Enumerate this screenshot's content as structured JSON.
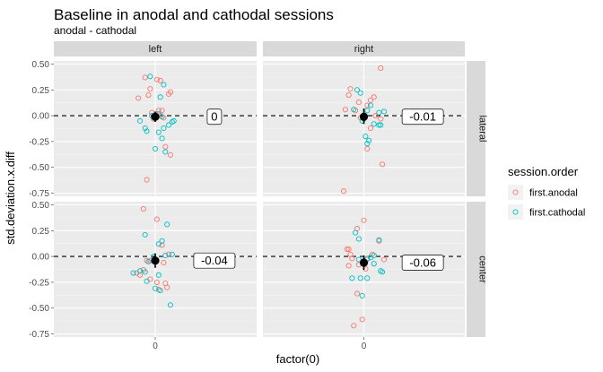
{
  "chart_data": {
    "type": "scatter",
    "title": "Baseline in anodal and cathodal sessions",
    "subtitle": "anodal - cathodal",
    "xlabel": "factor(0)",
    "ylabel": "std.deviation.x.diff",
    "x_tick_labels": [
      "0"
    ],
    "y_tick_labels": [
      "0.50",
      "0.25",
      "0.00",
      "-0.25",
      "-0.50",
      "-0.75"
    ],
    "y_ticks": [
      0.5,
      0.25,
      0,
      -0.25,
      -0.5,
      -0.75
    ],
    "ylim": [
      -0.78,
      0.53
    ],
    "xlim": [
      -0.6,
      0.6
    ],
    "reference_line_y": 0,
    "legend": {
      "title": "session.order",
      "entries": [
        {
          "label": "first.anodal",
          "color": "#F8766D"
        },
        {
          "label": "first.cathodal",
          "color": "#00BFC4"
        }
      ]
    },
    "panels": [
      {
        "col": "left",
        "row": "lateral",
        "label": "0",
        "label_x": 0.35,
        "mean": {
          "x": 0.0,
          "y": -0.01,
          "ymin": -0.06,
          "ymax": 0.04
        },
        "points": {
          "first.anodal": [
            [
              -0.1,
              0.17
            ],
            [
              -0.06,
              0.37
            ],
            [
              0.01,
              0.35
            ],
            [
              0.03,
              0.34
            ],
            [
              -0.03,
              0.26
            ],
            [
              0.08,
              0.21
            ],
            [
              0.09,
              0.23
            ],
            [
              -0.04,
              0.2
            ],
            [
              0.02,
              0.05
            ],
            [
              0.04,
              0.05
            ],
            [
              -0.02,
              0.03
            ],
            [
              0.03,
              0.0
            ],
            [
              0.06,
              -0.3
            ],
            [
              0.09,
              -0.38
            ],
            [
              -0.05,
              -0.62
            ],
            [
              0.05,
              -0.02
            ],
            [
              -0.01,
              -0.03
            ]
          ],
          "first.cathodal": [
            [
              -0.03,
              0.38
            ],
            [
              0.05,
              0.3
            ],
            [
              0.03,
              0.18
            ],
            [
              0.04,
              -0.01
            ],
            [
              -0.01,
              -0.01
            ],
            [
              0.11,
              -0.05
            ],
            [
              0.1,
              -0.06
            ],
            [
              0.08,
              -0.09
            ],
            [
              0.05,
              -0.12
            ],
            [
              -0.06,
              -0.12
            ],
            [
              -0.05,
              -0.15
            ],
            [
              -0.09,
              -0.05
            ],
            [
              0.02,
              -0.16
            ],
            [
              0.04,
              -0.22
            ],
            [
              0.0,
              -0.32
            ],
            [
              0.06,
              -0.35
            ],
            [
              -0.02,
              0.0
            ],
            [
              0.02,
              0.02
            ]
          ]
        }
      },
      {
        "col": "right",
        "row": "lateral",
        "label": "-0.01",
        "label_x": 0.35,
        "mean": {
          "x": 0.0,
          "y": -0.01,
          "ymin": -0.08,
          "ymax": 0.07
        },
        "points": {
          "first.anodal": [
            [
              0.1,
              0.46
            ],
            [
              -0.08,
              0.26
            ],
            [
              -0.09,
              0.2
            ],
            [
              0.06,
              0.18
            ],
            [
              0.04,
              0.15
            ],
            [
              -0.03,
              0.13
            ],
            [
              -0.11,
              0.06
            ],
            [
              -0.05,
              0.05
            ],
            [
              0.02,
              0.1
            ],
            [
              0.07,
              0.0
            ],
            [
              0.1,
              -0.03
            ],
            [
              0.04,
              -0.12
            ],
            [
              0.02,
              -0.32
            ],
            [
              0.11,
              -0.47
            ],
            [
              -0.12,
              -0.73
            ],
            [
              -0.02,
              -0.02
            ]
          ],
          "first.cathodal": [
            [
              -0.04,
              0.25
            ],
            [
              -0.02,
              0.22
            ],
            [
              0.04,
              0.1
            ],
            [
              0.02,
              0.05
            ],
            [
              -0.06,
              0.06
            ],
            [
              0.12,
              0.04
            ],
            [
              0.09,
              0.03
            ],
            [
              -0.01,
              -0.05
            ],
            [
              0.06,
              -0.08
            ],
            [
              0.09,
              -0.09
            ],
            [
              0.1,
              -0.09
            ],
            [
              0.01,
              -0.2
            ],
            [
              0.03,
              -0.24
            ],
            [
              0.02,
              -0.27
            ],
            [
              0.0,
              -0.03
            ]
          ]
        }
      },
      {
        "col": "left",
        "row": "center",
        "label": "-0.04",
        "label_x": 0.35,
        "mean": {
          "x": 0.0,
          "y": -0.04,
          "ymin": -0.11,
          "ymax": 0.03
        },
        "points": {
          "first.anodal": [
            [
              -0.07,
              0.46
            ],
            [
              0.01,
              0.36
            ],
            [
              0.04,
              0.11
            ],
            [
              0.08,
              0.02
            ],
            [
              -0.05,
              -0.04
            ],
            [
              -0.07,
              -0.13
            ],
            [
              -0.11,
              -0.16
            ],
            [
              -0.09,
              -0.18
            ],
            [
              -0.03,
              -0.22
            ],
            [
              0.01,
              -0.25
            ],
            [
              0.06,
              -0.26
            ],
            [
              0.07,
              -0.3
            ],
            [
              0.02,
              -0.32
            ],
            [
              -0.03,
              -0.04
            ],
            [
              0.05,
              -0.06
            ]
          ],
          "first.cathodal": [
            [
              0.07,
              0.31
            ],
            [
              -0.06,
              0.21
            ],
            [
              0.04,
              0.15
            ],
            [
              0.02,
              0.12
            ],
            [
              0.1,
              0.02
            ],
            [
              0.06,
              0.01
            ],
            [
              -0.01,
              0.0
            ],
            [
              -0.04,
              -0.05
            ],
            [
              -0.06,
              -0.15
            ],
            [
              -0.09,
              -0.14
            ],
            [
              -0.13,
              -0.16
            ],
            [
              0.02,
              -0.18
            ],
            [
              -0.05,
              -0.24
            ],
            [
              0.0,
              -0.31
            ],
            [
              0.03,
              -0.33
            ],
            [
              0.09,
              -0.47
            ]
          ]
        }
      },
      {
        "col": "right",
        "row": "center",
        "label": "-0.06",
        "label_x": 0.35,
        "mean": {
          "x": 0.0,
          "y": -0.06,
          "ymin": -0.13,
          "ymax": 0.01
        },
        "points": {
          "first.anodal": [
            [
              -0.04,
              0.27
            ],
            [
              0.0,
              0.35
            ],
            [
              -0.09,
              0.07
            ],
            [
              -0.1,
              0.07
            ],
            [
              -0.08,
              0.02
            ],
            [
              0.05,
              0.02
            ],
            [
              0.09,
              0.15
            ],
            [
              0.12,
              -0.03
            ],
            [
              -0.07,
              -0.02
            ],
            [
              -0.03,
              -0.08
            ],
            [
              0.01,
              -0.12
            ],
            [
              -0.09,
              -0.09
            ],
            [
              -0.04,
              -0.36
            ],
            [
              -0.01,
              -0.61
            ],
            [
              -0.06,
              -0.67
            ],
            [
              0.02,
              -0.03
            ]
          ],
          "first.cathodal": [
            [
              -0.05,
              0.23
            ],
            [
              -0.03,
              0.17
            ],
            [
              0.09,
              0.16
            ],
            [
              0.06,
              0.01
            ],
            [
              0.04,
              -0.01
            ],
            [
              0.1,
              -0.14
            ],
            [
              0.11,
              -0.15
            ],
            [
              0.06,
              -0.07
            ],
            [
              -0.03,
              -0.03
            ],
            [
              0.02,
              -0.02
            ],
            [
              -0.07,
              -0.21
            ],
            [
              -0.02,
              -0.21
            ],
            [
              0.02,
              -0.21
            ],
            [
              -0.01,
              -0.38
            ]
          ]
        }
      }
    ]
  }
}
